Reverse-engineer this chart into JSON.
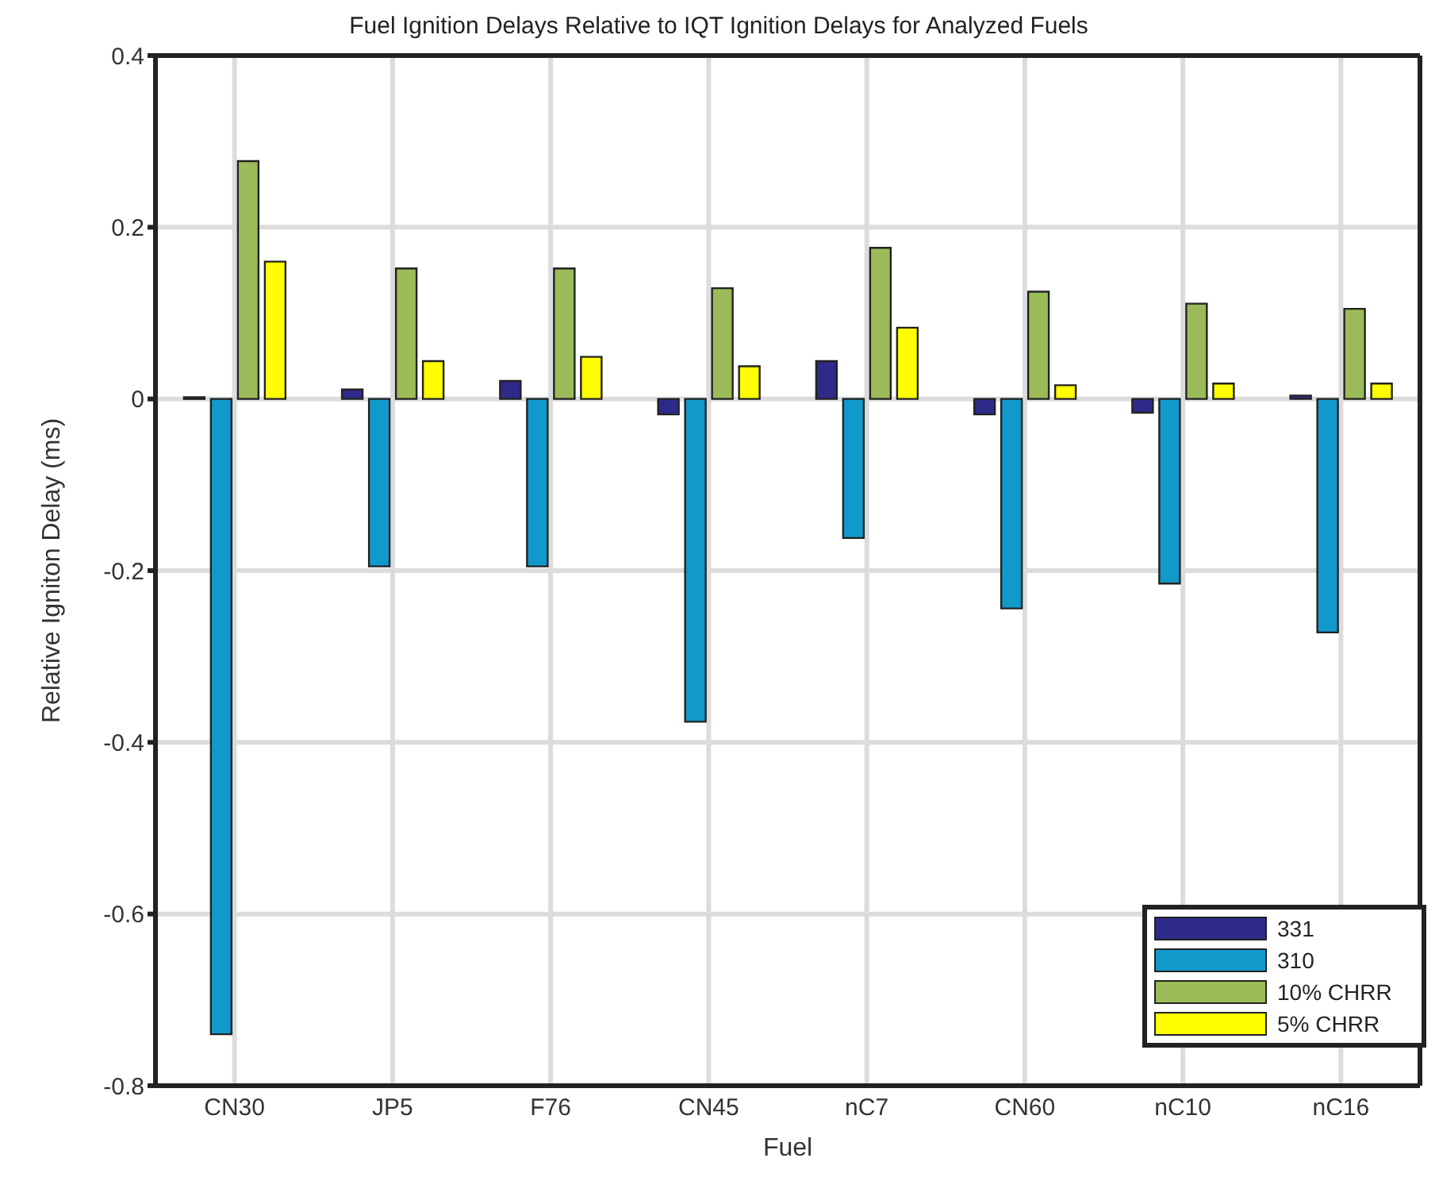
{
  "chart_data": {
    "type": "bar",
    "title": "Fuel Ignition Delays Relative to IQT Ignition Delays for Analyzed Fuels",
    "xlabel": "Fuel",
    "ylabel": "Relative Igniton Delay (ms)",
    "categories": [
      "CN30",
      "JP5",
      "F76",
      "CN45",
      "nC7",
      "CN60",
      "nC10",
      "nC16"
    ],
    "series": [
      {
        "name": "331",
        "color": "#2e2a8a",
        "values": [
          0.002,
          0.011,
          0.021,
          -0.018,
          0.044,
          -0.018,
          -0.016,
          0.004
        ]
      },
      {
        "name": "310",
        "color": "#1199cc",
        "values": [
          -0.74,
          -0.195,
          -0.195,
          -0.376,
          -0.162,
          -0.244,
          -0.215,
          -0.272
        ]
      },
      {
        "name": "10% CHRR",
        "color": "#9bbb59",
        "values": [
          0.277,
          0.152,
          0.152,
          0.129,
          0.176,
          0.125,
          0.111,
          0.105
        ]
      },
      {
        "name": "5% CHRR",
        "color": "#ffff00",
        "values": [
          0.16,
          0.044,
          0.049,
          0.038,
          0.083,
          0.016,
          0.018,
          0.018
        ]
      }
    ],
    "ylim": [
      -0.8,
      0.4
    ],
    "yticks": [
      -0.8,
      -0.6,
      -0.4,
      -0.2,
      0,
      0.2,
      0.4
    ],
    "grid": true,
    "legend": "bottom right"
  }
}
